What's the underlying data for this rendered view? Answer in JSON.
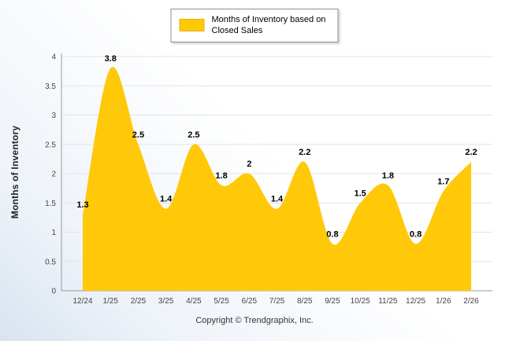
{
  "legend": {
    "label": "Months of Inventory based on Closed Sales"
  },
  "footer": {
    "copyright": "Copyright © Trendgraphix, Inc."
  },
  "chart_data": {
    "type": "area",
    "title": "Months of Inventory based on Closed Sales",
    "categories": [
      "12/24",
      "1/25",
      "2/25",
      "3/25",
      "4/25",
      "5/25",
      "6/25",
      "7/25",
      "8/25",
      "9/25",
      "10/25",
      "11/25",
      "12/25",
      "1/26",
      "2/26"
    ],
    "values": [
      1.3,
      3.8,
      2.5,
      1.4,
      2.5,
      1.8,
      2,
      1.4,
      2.2,
      0.8,
      1.5,
      1.8,
      0.8,
      1.7,
      2.2
    ],
    "xlabel": "",
    "ylabel": "Months of Inventory",
    "ylim": [
      0,
      4
    ],
    "yticks": [
      0,
      0.5,
      1,
      1.5,
      2,
      2.5,
      3,
      3.5,
      4
    ],
    "grid": true,
    "legend_position": "top",
    "data_labels": true,
    "colors": {
      "fill": "#FFC90A",
      "grid": "#e3e3e3",
      "axis": "#9a9a9a",
      "tick_text": "#444444",
      "point_label": "#000000"
    }
  }
}
